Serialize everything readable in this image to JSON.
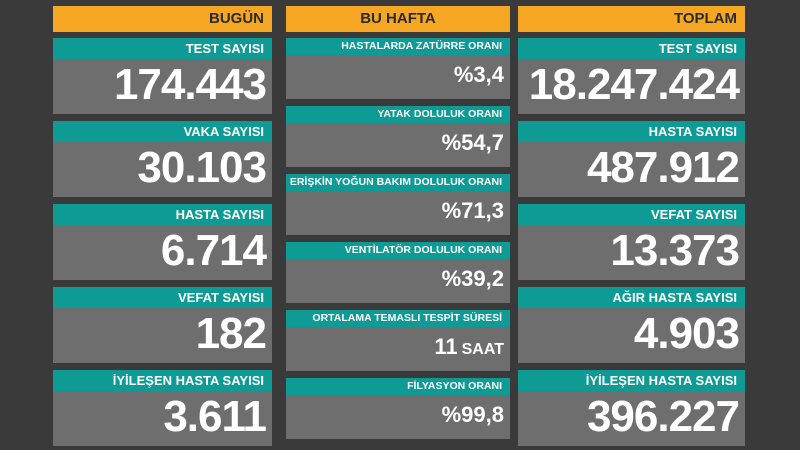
{
  "today": {
    "header": "BUGÜN",
    "cards": [
      {
        "label": "TEST SAYISI",
        "value": "174.443"
      },
      {
        "label": "VAKA SAYISI",
        "value": "30.103"
      },
      {
        "label": "HASTA SAYISI",
        "value": "6.714"
      },
      {
        "label": "VEFAT SAYISI",
        "value": "182"
      },
      {
        "label": "İYİLEŞEN HASTA SAYISI",
        "value": "3.611"
      }
    ]
  },
  "week": {
    "header": "BU HAFTA",
    "cards": [
      {
        "label": "HASTALARDA ZATÜRRE ORANI",
        "value": "%3,4"
      },
      {
        "label": "YATAK DOLULUK ORANI",
        "value": "%54,7"
      },
      {
        "label": "ERİŞKİN YOĞUN BAKIM DOLULUK ORANI",
        "value": "%71,3"
      },
      {
        "label": "VENTİLATÖR DOLULUK ORANI",
        "value": "%39,2"
      },
      {
        "label": "ORTALAMA TEMASLI TESPİT SÜRESİ",
        "value": "11",
        "unit": "SAAT"
      },
      {
        "label": "FİLYASYON ORANI",
        "value": "%99,8"
      }
    ]
  },
  "total": {
    "header": "TOPLAM",
    "cards": [
      {
        "label": "TEST SAYISI",
        "value": "18.247.424"
      },
      {
        "label": "HASTA SAYISI",
        "value": "487.912"
      },
      {
        "label": "VEFAT SAYISI",
        "value": "13.373"
      },
      {
        "label": "AĞIR HASTA SAYISI",
        "value": "4.903"
      },
      {
        "label": "İYİLEŞEN HASTA SAYISI",
        "value": "396.227"
      }
    ]
  },
  "colors": {
    "background": "#3a3a3a",
    "header": "#f5a623",
    "label": "#0e9b96",
    "card": "#6e6e6e"
  }
}
